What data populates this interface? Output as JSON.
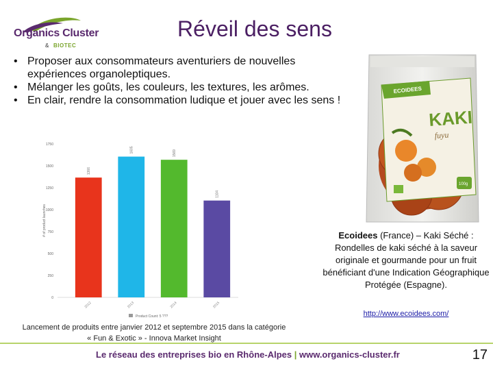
{
  "logo": {
    "name": "Organics Cluster",
    "amp": "&",
    "sub": "BIOTEC"
  },
  "title": "Réveil des sens",
  "bullets": [
    "Proposer aux consommateurs aventuriers de nouvelles expériences organoleptiques.",
    "Mélanger les goûts, les couleurs, les textures, les arômes.",
    "En clair, rendre la consommation ludique et jouer avec les sens !"
  ],
  "chart_data": {
    "type": "bar",
    "categories": [
      "2012",
      "2013",
      "2014",
      "2015"
    ],
    "values": [
      1366,
      1605,
      1569,
      1104
    ],
    "colors": [
      "#e8341c",
      "#1fb6e8",
      "#53b92d",
      "#5a4aa3"
    ],
    "ylim": [
      0,
      1750
    ],
    "yticks": [
      0,
      250,
      500,
      750,
      1000,
      1250,
      1500,
      1750
    ],
    "ylabel": "# of product launches",
    "legend": "Product Count: 5 ???",
    "grid": false
  },
  "caption": "Lancement de produits entre janvier 2012 et septembre 2015 dans la catégorie « Fun & Exotic » - Innova Market Insight",
  "product": {
    "brand": "ECOIDEES",
    "name": "KAKI",
    "sub": "fuyu",
    "weight": "100g"
  },
  "description": {
    "brand": "Ecoidees",
    "text": " (France) – Kaki Séché : Rondelles de kaki séché à la saveur originale et gourmande pour un fruit bénéficiant d'une Indication Géographique Protégée (Espagne)."
  },
  "link": "http://www.ecoidees.com/",
  "footer": {
    "left": "Le réseau des entreprises bio en Rhône-Alpes",
    "sep": " | ",
    "right": "www.organics-cluster.fr"
  },
  "page_number": "17"
}
